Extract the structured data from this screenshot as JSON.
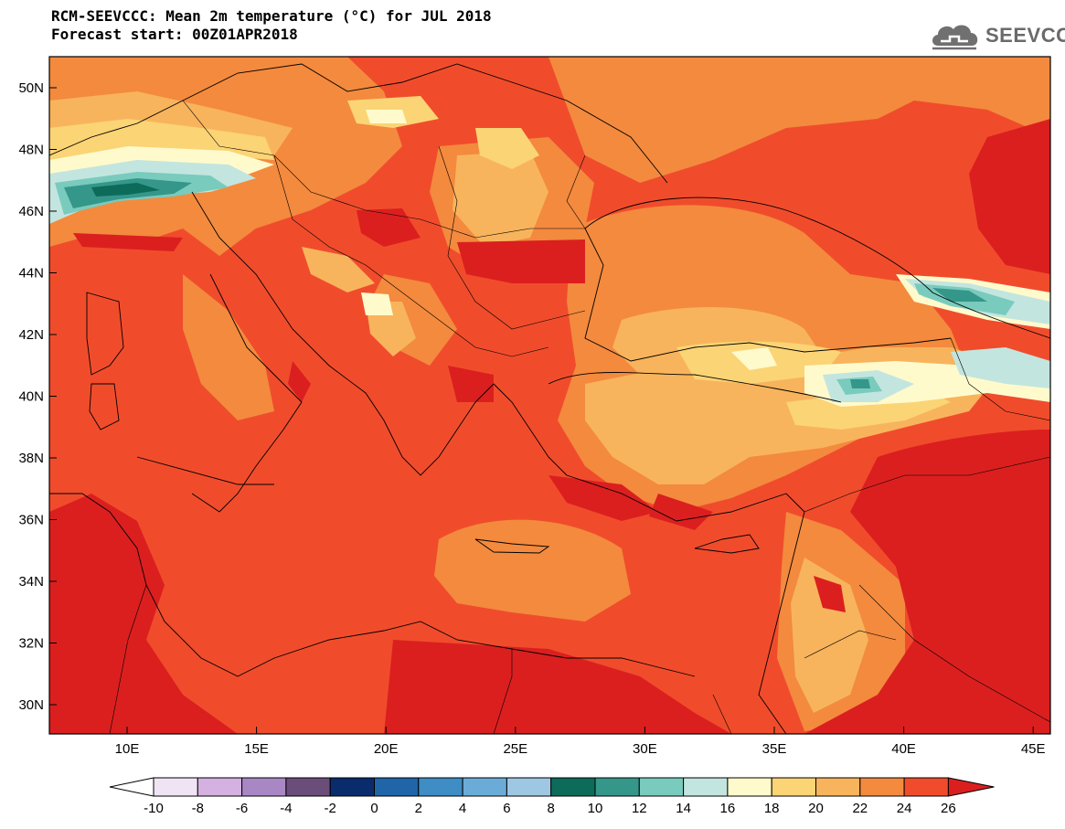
{
  "title": {
    "line1": "RCM-SEEVCCC: Mean 2m temperature (°C) for JUL 2018",
    "line2": "Forecast start: 00Z01APR2018"
  },
  "logo": {
    "text": "SEEVCCC",
    "icon": "cloud-logo-icon"
  },
  "map": {
    "lon_ticks": [
      "10E",
      "15E",
      "20E",
      "25E",
      "30E",
      "35E",
      "40E",
      "45E"
    ],
    "lat_ticks": [
      "50N",
      "48N",
      "46N",
      "44N",
      "42N",
      "40N",
      "38N",
      "36N",
      "34N",
      "32N",
      "30N"
    ]
  },
  "colorbar": {
    "labels": [
      "-10",
      "-8",
      "-6",
      "-4",
      "-2",
      "0",
      "2",
      "4",
      "6",
      "8",
      "10",
      "12",
      "14",
      "16",
      "18",
      "20",
      "22",
      "24",
      "26"
    ],
    "colors": [
      "#efe4f3",
      "#d4b1e0",
      "#a987c5",
      "#6b4d7a",
      "#0b2c6c",
      "#1f65a8",
      "#3e8dc4",
      "#6aacd7",
      "#9ec7e3",
      "#0c6b59",
      "#35968a",
      "#79cbbd",
      "#c3e5df",
      "#fffacc",
      "#fbd475",
      "#f8b45c",
      "#f38a3e",
      "#f04c2c"
    ],
    "under_color": "#ffffff",
    "over_color": "#db1f1f"
  }
}
